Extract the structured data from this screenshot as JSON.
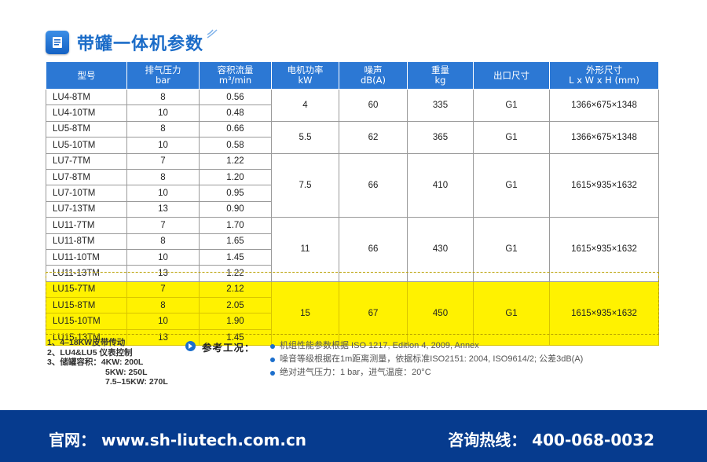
{
  "title": "带罐一体机参数",
  "header": {
    "model": "型号",
    "pressure": [
      "排气压力",
      "bar"
    ],
    "flow": [
      "容积流量",
      "m³/min"
    ],
    "power": [
      "电机功率",
      "kW"
    ],
    "noise": [
      "噪声",
      "dB(A)"
    ],
    "weight": [
      "重量",
      "kg"
    ],
    "outlet": "出口尺寸",
    "dims": [
      "外形尺寸",
      "L x W x H (mm)"
    ]
  },
  "rows": [
    {
      "model": "LU4-8TM",
      "pressure": "8",
      "flow": "0.56"
    },
    {
      "model": "LU4-10TM",
      "pressure": "10",
      "flow": "0.48"
    },
    {
      "model": "LU5-8TM",
      "pressure": "8",
      "flow": "0.66"
    },
    {
      "model": "LU5-10TM",
      "pressure": "10",
      "flow": "0.58"
    },
    {
      "model": "LU7-7TM",
      "pressure": "7",
      "flow": "1.22"
    },
    {
      "model": "LU7-8TM",
      "pressure": "8",
      "flow": "1.20"
    },
    {
      "model": "LU7-10TM",
      "pressure": "10",
      "flow": "0.95"
    },
    {
      "model": "LU7-13TM",
      "pressure": "13",
      "flow": "0.90"
    },
    {
      "model": "LU11-7TM",
      "pressure": "7",
      "flow": "1.70"
    },
    {
      "model": "LU11-8TM",
      "pressure": "8",
      "flow": "1.65"
    },
    {
      "model": "LU11-10TM",
      "pressure": "10",
      "flow": "1.45"
    },
    {
      "model": "LU11-13TM",
      "pressure": "13",
      "flow": "1.22"
    },
    {
      "model": "LU15-7TM",
      "pressure": "7",
      "flow": "2.12"
    },
    {
      "model": "LU15-8TM",
      "pressure": "8",
      "flow": "2.05"
    },
    {
      "model": "LU15-10TM",
      "pressure": "10",
      "flow": "1.90"
    },
    {
      "model": "LU15-13TM",
      "pressure": "13",
      "flow": "1.45"
    }
  ],
  "groups": [
    {
      "power": "4",
      "noise": "60",
      "weight": "335",
      "outlet": "G1",
      "dims": "1366×675×1348"
    },
    {
      "power": "5.5",
      "noise": "62",
      "weight": "365",
      "outlet": "G1",
      "dims": "1366×675×1348"
    },
    {
      "power": "7.5",
      "noise": "66",
      "weight": "410",
      "outlet": "G1",
      "dims": "1615×935×1632"
    },
    {
      "power": "11",
      "noise": "66",
      "weight": "430",
      "outlet": "G1",
      "dims": "1615×935×1632"
    },
    {
      "power": "15",
      "noise": "67",
      "weight": "450",
      "outlet": "G1",
      "dims": "1615×935×1632"
    }
  ],
  "notes": [
    "1、4–18KW皮带传动",
    "2、LU4&LU5 仪表控制",
    "3、储罐容积：4KW: 200L",
    "5KW: 250L",
    "7.5–15KW: 270L"
  ],
  "reference": {
    "label": "参考工况：",
    "items": [
      "机组性能参数根据 ISO 1217, Edition 4, 2009, Annex",
      "噪音等级根据在1m距离测量，依据标准ISO2151: 2004, ISO9614/2; 公差3dB(A)",
      "绝对进气压力：1 bar，进气温度：20°C"
    ]
  },
  "footer": {
    "website": "官网：  www.sh-liutech.com.cn",
    "hotline": "咨询热线：  400-068-0032"
  },
  "colors": {
    "header": "#2c78d4",
    "highlight": "#fff200",
    "footer": "#063b8e",
    "title": "#1b6cc8"
  }
}
